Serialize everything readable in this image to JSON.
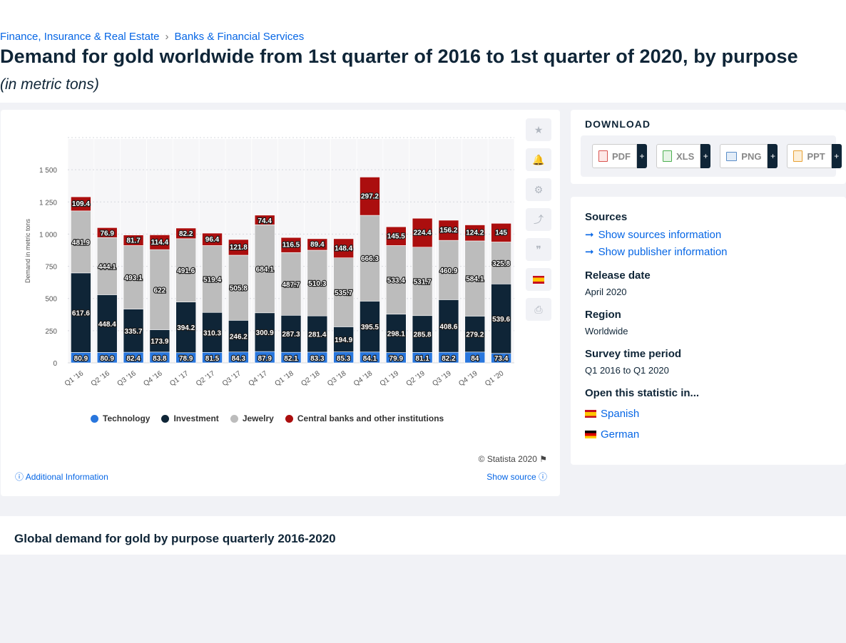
{
  "breadcrumb": {
    "item1": "Finance, Insurance & Real Estate",
    "sep": "›",
    "item2": "Banks & Financial Services"
  },
  "title": "Demand for gold worldwide from 1st quarter of 2016 to 1st quarter of 2020, by purpose",
  "subtitle": "(in metric tons)",
  "chart_data": {
    "type": "bar",
    "stacked": true,
    "categories": [
      "Q1 '16",
      "Q2 '16",
      "Q3 '16",
      "Q4 '16",
      "Q1 '17",
      "Q2 '17",
      "Q3 '17",
      "Q4 '17",
      "Q1 '18",
      "Q2 '18",
      "Q3 '18",
      "Q4 '18",
      "Q1 '19",
      "Q2 '19",
      "Q3 '19",
      "Q4 '19",
      "Q1 '20"
    ],
    "series": [
      {
        "name": "Technology",
        "color": "#2876dd",
        "values": [
          80.9,
          80.9,
          82.4,
          83.8,
          78.9,
          81.5,
          84.3,
          87.9,
          82.1,
          83.3,
          85.3,
          84.1,
          79.9,
          81.1,
          82.2,
          84,
          73.4
        ]
      },
      {
        "name": "Investment",
        "color": "#0f2537",
        "values": [
          617.6,
          448.4,
          335.7,
          173.9,
          394.2,
          310.3,
          246.2,
          300.9,
          287.3,
          281.4,
          194.9,
          395.5,
          298.1,
          285.8,
          408.6,
          279.2,
          539.6
        ]
      },
      {
        "name": "Jewelry",
        "color": "#bcbcbc",
        "values": [
          481.9,
          444.1,
          493.1,
          622,
          491.6,
          519.4,
          505.8,
          684.1,
          487.7,
          510.3,
          535.7,
          666.3,
          533.4,
          531.7,
          460.9,
          584.1,
          325.8
        ]
      },
      {
        "name": "Central banks and other institutions",
        "color": "#ab0e0e",
        "values": [
          109.4,
          76.9,
          81.7,
          114.4,
          82.2,
          96.4,
          121.8,
          74.4,
          116.5,
          89.4,
          148.4,
          297.2,
          145.5,
          224.4,
          156.2,
          124.2,
          145
        ]
      }
    ],
    "ylabel": "Demand in metric tons",
    "yticks": [
      "0",
      "250",
      "500",
      "750",
      "1 000",
      "1 250",
      "1 500"
    ],
    "ylim": [
      0,
      1750
    ],
    "grid": true,
    "legend_position": "bottom"
  },
  "tools": {
    "star": "★",
    "bell": "🔔",
    "gear": "⚙",
    "share": "⤴",
    "quote": "❞",
    "print": "⎙"
  },
  "copyright": "© Statista 2020",
  "copyright_flag": "⚑",
  "additional_info": "Additional Information",
  "show_source": "Show source",
  "download": {
    "title": "DOWNLOAD",
    "buttons": [
      {
        "label": "PDF",
        "plus": "+",
        "color": "#d9534f"
      },
      {
        "label": "XLS",
        "plus": "+",
        "color": "#4caf50"
      },
      {
        "label": "PNG",
        "plus": "+",
        "color": "#5a8dc7"
      },
      {
        "label": "PPT",
        "plus": "+",
        "color": "#e8a032"
      }
    ]
  },
  "info": {
    "sources_h": "Sources",
    "show_sources": "Show sources information",
    "show_publisher": "Show publisher information",
    "release_h": "Release date",
    "release_v": "April 2020",
    "region_h": "Region",
    "region_v": "Worldwide",
    "survey_h": "Survey time period",
    "survey_v": "Q1 2016 to Q1 2020",
    "open_h": "Open this statistic in...",
    "lang1": "Spanish",
    "lang2": "German",
    "arrow": "➞"
  },
  "related": {
    "title": "Global demand for gold by purpose quarterly 2016-2020"
  }
}
